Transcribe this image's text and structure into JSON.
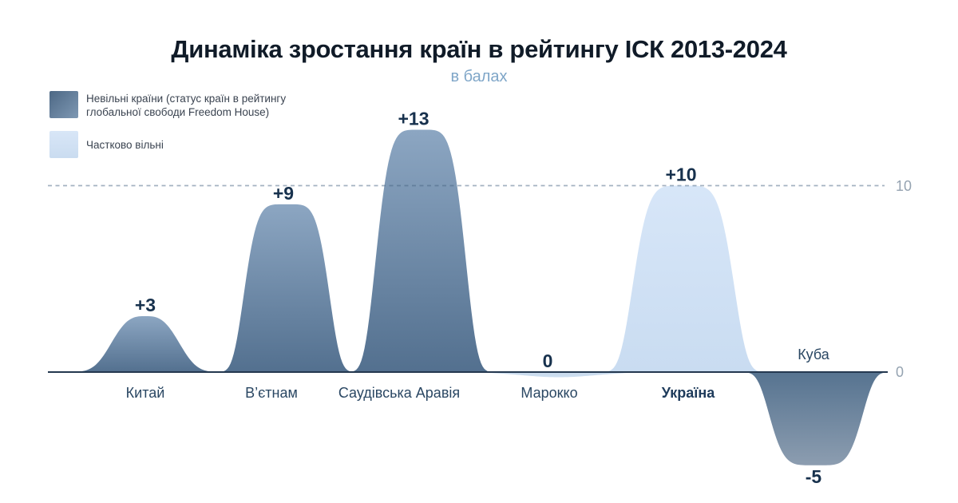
{
  "header": {
    "title": "Динаміка зростання країн в рейтингу ІСК 2013-2024",
    "subtitle": "в балах"
  },
  "legend": {
    "items": [
      {
        "id": "not-free",
        "label_line1": "Невільні країни (статус країн в рейтингу",
        "label_line2": "глобальної свободи Freedom House)"
      },
      {
        "id": "partly-free",
        "label_line1": "Частково вільні",
        "label_line2": ""
      }
    ]
  },
  "axis": {
    "gridline_label": "10",
    "baseline_label": "0"
  },
  "chart_data": {
    "type": "area",
    "title": "Динаміка зростання країн в рейтингу ІСК 2013-2024",
    "unit_subtitle": "в балах",
    "categories": [
      "Китай",
      "В’єтнам",
      "Саудівська Аравія",
      "Марокко",
      "Україна",
      "Куба"
    ],
    "values": [
      3,
      9,
      13,
      0,
      10,
      -5
    ],
    "value_labels": [
      "+3",
      "+9",
      "+13",
      "0",
      "+10",
      "-5"
    ],
    "series_status": [
      "not_free",
      "not_free",
      "not_free",
      "partly_free",
      "partly_free",
      "not_free"
    ],
    "emphasized_category": "Україна",
    "ylim": [
      -5,
      13
    ],
    "reference_line": 10,
    "baseline": 0,
    "legend_position": "top-left",
    "grid": "single dashed reference line at y=10",
    "colors": {
      "not_free_top": "#8CA6C2",
      "not_free_bottom": "#53708F",
      "not_free_neg_top": "#567390",
      "not_free_neg_bottom": "#8C9DB0",
      "partly_free_top": "#D7E6F8",
      "partly_free_bottom": "#C9DCF1",
      "partly_free_neg_top": "#C6D8EB",
      "partly_free_neg_bottom": "#CFE0F1",
      "axis_line": "#24384F",
      "reference_line": "#4965837F",
      "value_text": "#17314D",
      "category_text": "#2A4763",
      "axis_tick_text": "#95A3B1"
    }
  }
}
